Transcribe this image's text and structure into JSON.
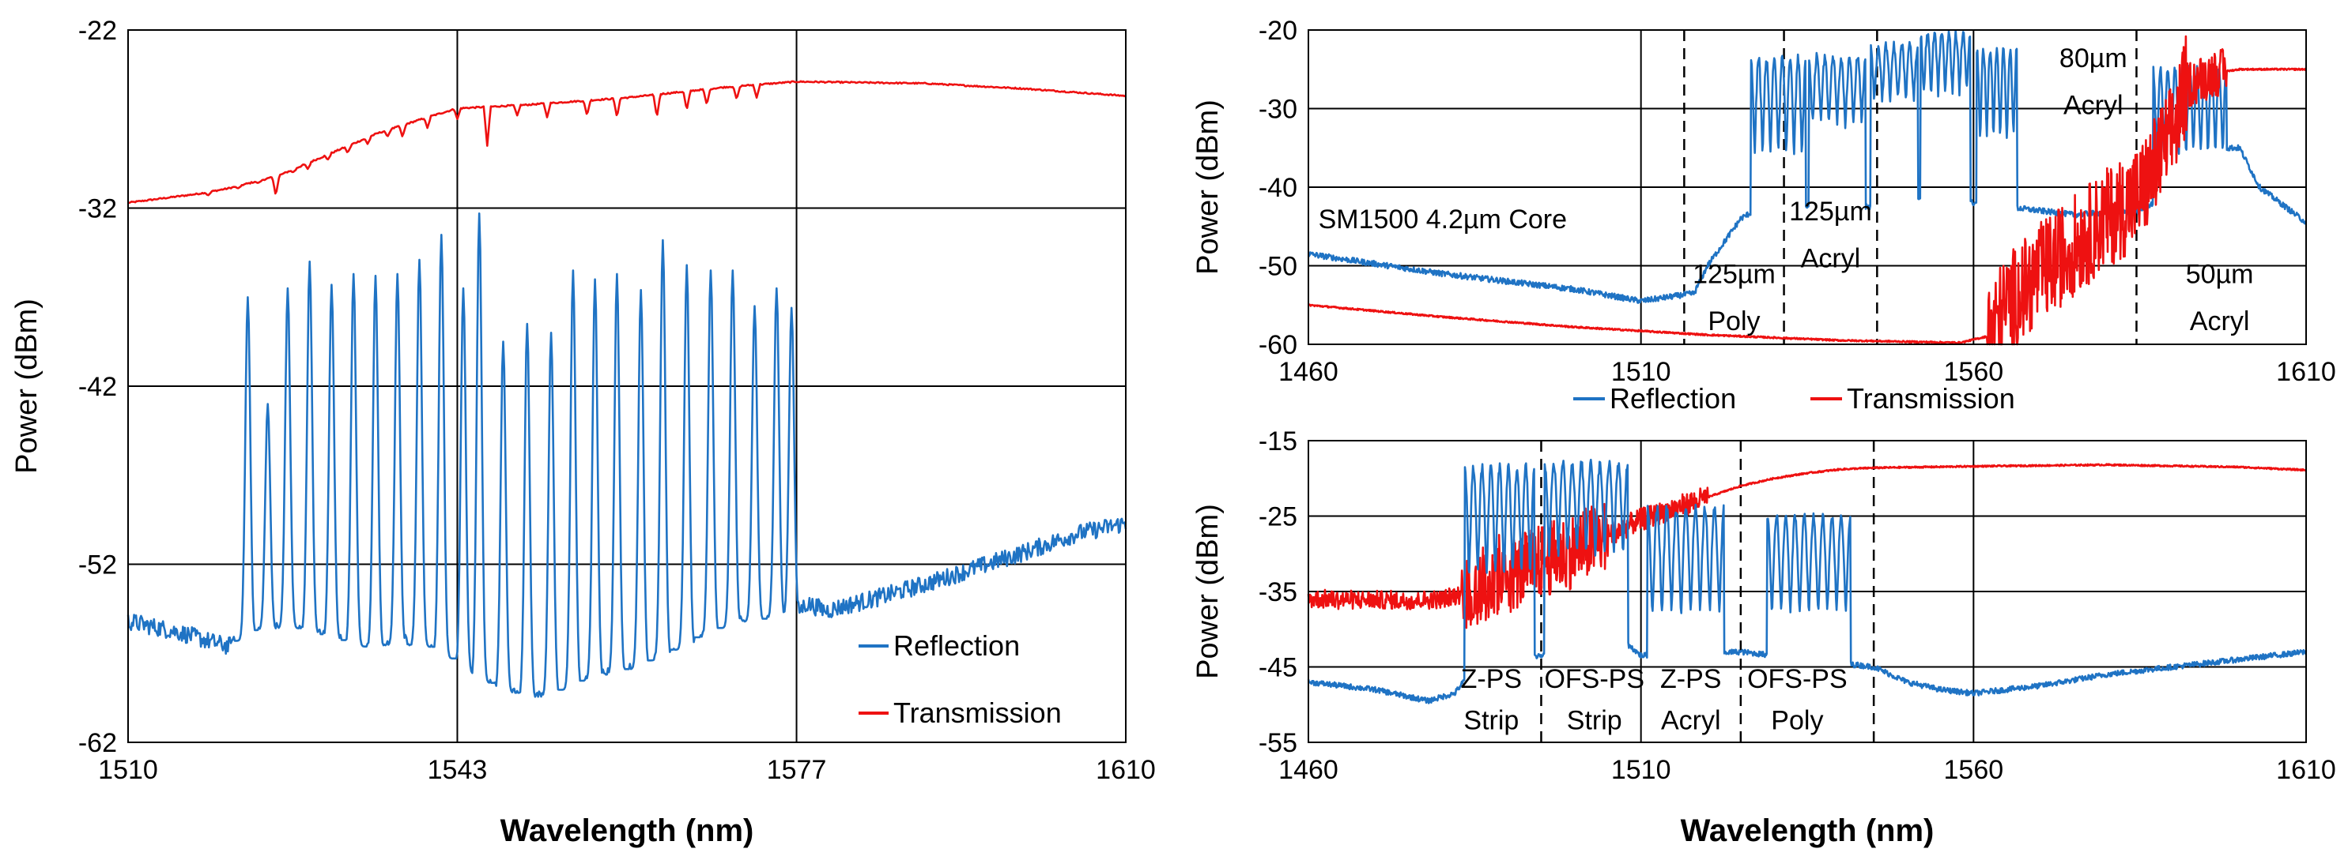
{
  "colors": {
    "reflection": "#1f73c4",
    "transmission": "#ee1111"
  },
  "chart_data": [
    {
      "id": "left",
      "type": "line",
      "xlabel": "Wavelength (nm)",
      "ylabel": "Power (dBm)",
      "xlim": [
        1510,
        1610
      ],
      "ylim": [
        -62,
        -22
      ],
      "xticks": [
        1510,
        1543,
        1577,
        1610
      ],
      "yticks": [
        -62,
        -52,
        -42,
        -32,
        -22
      ],
      "vlines": [
        1543,
        1577
      ],
      "legend": {
        "position": "bottom-right",
        "entries": [
          "Reflection",
          "Transmission"
        ]
      },
      "series": [
        {
          "name": "Transmission",
          "color": "transmission",
          "kind": "transmission",
          "points": [
            [
              1510,
              -31.7
            ],
            [
              1517,
              -31.2
            ],
            [
              1520,
              -30.9
            ],
            [
              1525,
              -30.2
            ],
            [
              1530,
              -29.0
            ],
            [
              1535,
              -27.8
            ],
            [
              1540,
              -26.9
            ],
            [
              1543,
              -26.4
            ],
            [
              1550,
              -26.2
            ],
            [
              1560,
              -25.8
            ],
            [
              1570,
              -25.2
            ],
            [
              1577,
              -24.9
            ],
            [
              1590,
              -25.0
            ],
            [
              1600,
              -25.3
            ],
            [
              1610,
              -25.7
            ]
          ],
          "dips": [
            [
              1518,
              -31.3
            ],
            [
              1521,
              -30.9
            ],
            [
              1523,
              -30.6
            ],
            [
              1524.8,
              -31.3
            ],
            [
              1526.5,
              -30.0
            ],
            [
              1528,
              -29.8
            ],
            [
              1530,
              -29.3
            ],
            [
              1532,
              -28.9
            ],
            [
              1534,
              -28.4
            ],
            [
              1536,
              -28.0
            ],
            [
              1537.5,
              -28.0
            ],
            [
              1540,
              -27.5
            ],
            [
              1543,
              -27.0
            ],
            [
              1546,
              -28.5
            ],
            [
              1549,
              -26.8
            ],
            [
              1552,
              -26.9
            ],
            [
              1556,
              -26.8
            ],
            [
              1559,
              -26.9
            ],
            [
              1563,
              -26.9
            ],
            [
              1566,
              -26.5
            ],
            [
              1568,
              -26.2
            ],
            [
              1571,
              -25.9
            ],
            [
              1573,
              -25.8
            ]
          ]
        },
        {
          "name": "Reflection",
          "color": "reflection",
          "kind": "peaks",
          "base": [
            [
              1510,
              -55.2
            ],
            [
              1515,
              -55.8
            ],
            [
              1518,
              -56.3
            ],
            [
              1520,
              -56.6
            ],
            [
              1522,
              -56.3
            ],
            [
              1524,
              -55.7
            ],
            [
              1526,
              -55.6
            ],
            [
              1528,
              -55.9
            ],
            [
              1530,
              -56.2
            ],
            [
              1532,
              -56.5
            ],
            [
              1534,
              -56.9
            ],
            [
              1536,
              -56.7
            ],
            [
              1538,
              -56.4
            ],
            [
              1540,
              -56.8
            ],
            [
              1542,
              -57.5
            ],
            [
              1544,
              -58.3
            ],
            [
              1546,
              -58.9
            ],
            [
              1548,
              -59.3
            ],
            [
              1550,
              -59.6
            ],
            [
              1552,
              -59.5
            ],
            [
              1554,
              -59.2
            ],
            [
              1556,
              -58.7
            ],
            [
              1558,
              -58.3
            ],
            [
              1560,
              -58.1
            ],
            [
              1562,
              -57.8
            ],
            [
              1564,
              -57.3
            ],
            [
              1566,
              -56.8
            ],
            [
              1568,
              -56.2
            ],
            [
              1570,
              -55.7
            ],
            [
              1572,
              -55.3
            ],
            [
              1574,
              -55.1
            ],
            [
              1576.5,
              -55.0
            ],
            [
              1578,
              -54.2
            ],
            [
              1580,
              -54.6
            ],
            [
              1585,
              -53.9
            ],
            [
              1590,
              -53.1
            ],
            [
              1595,
              -52.2
            ],
            [
              1600,
              -51.3
            ],
            [
              1605,
              -50.3
            ],
            [
              1610,
              -49.7
            ]
          ],
          "peaks": [
            [
              1522,
              -37.0
            ],
            [
              1524,
              -43.0
            ],
            [
              1526,
              -36.5
            ],
            [
              1528.2,
              -35.0
            ],
            [
              1530.4,
              -36.3
            ],
            [
              1532.6,
              -35.7
            ],
            [
              1534.8,
              -35.8
            ],
            [
              1537,
              -35.7
            ],
            [
              1539.2,
              -34.9
            ],
            [
              1541.4,
              -33.5
            ],
            [
              1543.6,
              -36.5
            ],
            [
              1545.2,
              -32.3
            ],
            [
              1547.6,
              -39.5
            ],
            [
              1550,
              -38.5
            ],
            [
              1552.4,
              -39.0
            ],
            [
              1554.6,
              -35.5
            ],
            [
              1556.8,
              -36.0
            ],
            [
              1559,
              -35.7
            ],
            [
              1561.4,
              -36.6
            ],
            [
              1563.6,
              -33.8
            ],
            [
              1566,
              -35.2
            ],
            [
              1568.4,
              -35.5
            ],
            [
              1570.6,
              -35.5
            ],
            [
              1572.8,
              -37.5
            ],
            [
              1575,
              -36.5
            ],
            [
              1576.5,
              -37.6
            ]
          ]
        }
      ]
    },
    {
      "id": "top-right",
      "type": "line",
      "xlabel": "",
      "ylabel": "Power (dBm)",
      "xlim": [
        1460,
        1610
      ],
      "ylim": [
        -60,
        -20
      ],
      "xticks": [
        1460,
        1510,
        1560,
        1610
      ],
      "yticks": [
        -60,
        -50,
        -40,
        -30,
        -20
      ],
      "vlines": [
        1510,
        1560
      ],
      "dashed_lines": [
        1516.5,
        1531.5,
        1545.5,
        1584.5
      ],
      "annotations": [
        {
          "text": "SM1500 4.2µm Core",
          "x": 1461.5,
          "y": -44,
          "anchor": "start"
        },
        {
          "text": "125µm",
          "x": 1524,
          "y": -51,
          "anchor": "middle"
        },
        {
          "text": "Poly",
          "x": 1524,
          "y": -57,
          "anchor": "middle"
        },
        {
          "text": "125µm",
          "x": 1538.5,
          "y": -43,
          "anchor": "middle"
        },
        {
          "text": "Acryl",
          "x": 1538.5,
          "y": -49,
          "anchor": "middle"
        },
        {
          "text": "80µm",
          "x": 1578,
          "y": -23.5,
          "anchor": "middle"
        },
        {
          "text": "Acryl",
          "x": 1578,
          "y": -29.5,
          "anchor": "middle"
        },
        {
          "text": "50µm",
          "x": 1597,
          "y": -51,
          "anchor": "middle"
        },
        {
          "text": "Acryl",
          "x": 1597,
          "y": -57,
          "anchor": "middle"
        }
      ],
      "legend": {
        "position": "bottom-center",
        "entries": [
          "Reflection",
          "Transmission"
        ]
      },
      "series": [
        {
          "name": "Reflection",
          "color": "reflection",
          "kind": "bands",
          "base": [
            [
              1460,
              -48.5
            ],
            [
              1480,
              -51.0
            ],
            [
              1500,
              -53.0
            ],
            [
              1510,
              -54.5
            ],
            [
              1518,
              -53.5
            ],
            [
              1520,
              -50.0
            ],
            [
              1525,
              -44.0
            ],
            [
              1527,
              -43.0
            ],
            [
              1545,
              -42.5
            ],
            [
              1550,
              -41.0
            ],
            [
              1560,
              -42.0
            ],
            [
              1575,
              -43.5
            ],
            [
              1585,
              -43.0
            ],
            [
              1589,
              -41.0
            ],
            [
              1592,
              -35.0
            ],
            [
              1600,
              -35.0
            ],
            [
              1603,
              -40.0
            ],
            [
              1610,
              -44.5
            ]
          ],
          "bands": [
            {
              "x0": 1526.5,
              "x1": 1534.8,
              "top": -23.5,
              "bottom": -36.0,
              "n": 7
            },
            {
              "x0": 1535.2,
              "x1": 1543.8,
              "top": -23.5,
              "bottom": -32.0,
              "n": 7
            },
            {
              "x0": 1544.5,
              "x1": 1551.6,
              "top": -22.0,
              "bottom": -29.0,
              "n": 6
            },
            {
              "x0": 1552.0,
              "x1": 1559.5,
              "top": -20.5,
              "bottom": -28.0,
              "n": 7
            },
            {
              "x0": 1560.5,
              "x1": 1566.5,
              "top": -22.5,
              "bottom": -34.0,
              "n": 6
            },
            {
              "x0": 1587.0,
              "x1": 1598.0,
              "top": -25.0,
              "bottom": -36.0,
              "n": 10
            }
          ]
        },
        {
          "name": "Transmission",
          "color": "transmission",
          "kind": "noisyline",
          "base": [
            [
              1460,
              -55.0
            ],
            [
              1480,
              -56.5
            ],
            [
              1500,
              -57.8
            ],
            [
              1520,
              -58.8
            ],
            [
              1540,
              -59.5
            ],
            [
              1558,
              -59.8
            ],
            [
              1562,
              -59.0
            ],
            [
              1565,
              -55.0
            ],
            [
              1570,
              -51.0
            ],
            [
              1575,
              -47.5
            ],
            [
              1580,
              -44.0
            ],
            [
              1585,
              -41.0
            ],
            [
              1590,
              -33.0
            ],
            [
              1592,
              -27.0
            ],
            [
              1596,
              -25.5
            ],
            [
              1600,
              -25.0
            ],
            [
              1610,
              -25.0
            ]
          ],
          "noise": [
            {
              "x0": 1562,
              "x1": 1592,
              "amp": 6.5,
              "n": 40
            },
            {
              "x0": 1592,
              "x1": 1598,
              "amp": 3.0,
              "n": 10
            }
          ]
        }
      ]
    },
    {
      "id": "bottom-right",
      "type": "line",
      "xlabel": "Wavelength (nm)",
      "ylabel": "Power (dBm)",
      "xlim": [
        1460,
        1610
      ],
      "ylim": [
        -55,
        -15
      ],
      "xticks": [
        1460,
        1510,
        1560,
        1610
      ],
      "yticks": [
        -55,
        -45,
        -35,
        -25,
        -15
      ],
      "vlines": [
        1510,
        1560
      ],
      "dashed_lines": [
        1495,
        1525,
        1545
      ],
      "annotations": [
        {
          "text": "Z-PS",
          "x": 1487.5,
          "y": -46.5,
          "anchor": "middle"
        },
        {
          "text": "Strip",
          "x": 1487.5,
          "y": -52.0,
          "anchor": "middle"
        },
        {
          "text": "OFS-PS",
          "x": 1503.0,
          "y": -46.5,
          "anchor": "middle"
        },
        {
          "text": "Strip",
          "x": 1503.0,
          "y": -52.0,
          "anchor": "middle"
        },
        {
          "text": "Z-PS",
          "x": 1517.5,
          "y": -46.5,
          "anchor": "middle"
        },
        {
          "text": "Acryl",
          "x": 1517.5,
          "y": -52.0,
          "anchor": "middle"
        },
        {
          "text": "OFS-PS",
          "x": 1533.5,
          "y": -46.5,
          "anchor": "middle"
        },
        {
          "text": "Poly",
          "x": 1533.5,
          "y": -52.0,
          "anchor": "middle"
        }
      ],
      "series": [
        {
          "name": "Transmission",
          "color": "transmission",
          "kind": "noisyline",
          "base": [
            [
              1460,
              -36.0
            ],
            [
              1475,
              -36.2
            ],
            [
              1480,
              -36.0
            ],
            [
              1485,
              -35.0
            ],
            [
              1490,
              -33.0
            ],
            [
              1495,
              -31.0
            ],
            [
              1500,
              -29.5
            ],
            [
              1505,
              -27.5
            ],
            [
              1510,
              -25.5
            ],
            [
              1515,
              -24.0
            ],
            [
              1520,
              -22.5
            ],
            [
              1525,
              -21.0
            ],
            [
              1530,
              -20.0
            ],
            [
              1535,
              -19.3
            ],
            [
              1540,
              -18.8
            ],
            [
              1545,
              -18.6
            ],
            [
              1560,
              -18.4
            ],
            [
              1580,
              -18.2
            ],
            [
              1600,
              -18.5
            ],
            [
              1610,
              -18.9
            ]
          ],
          "noise": [
            {
              "x0": 1460,
              "x1": 1490,
              "amp": 1.2,
              "n": 80
            },
            {
              "x0": 1483,
              "x1": 1505,
              "amp": 5.0,
              "n": 40
            },
            {
              "x0": 1505,
              "x1": 1520,
              "amp": 1.5,
              "n": 20
            }
          ]
        },
        {
          "name": "Reflection",
          "color": "reflection",
          "kind": "bands",
          "base": [
            [
              1460,
              -47.0
            ],
            [
              1470,
              -48.0
            ],
            [
              1478,
              -49.5
            ],
            [
              1482,
              -48.5
            ],
            [
              1485,
              -45.0
            ],
            [
              1495,
              -43.5
            ],
            [
              1508,
              -42.0
            ],
            [
              1510,
              -43.5
            ],
            [
              1525,
              -43.0
            ],
            [
              1545,
              -45.0
            ],
            [
              1550,
              -47.0
            ],
            [
              1555,
              -48.0
            ],
            [
              1560,
              -48.5
            ],
            [
              1570,
              -47.5
            ],
            [
              1580,
              -46.0
            ],
            [
              1590,
              -45.0
            ],
            [
              1600,
              -44.0
            ],
            [
              1610,
              -43.0
            ]
          ],
          "bands": [
            {
              "x0": 1483.5,
              "x1": 1494.0,
              "top": -18.5,
              "bottom": -33.0,
              "n": 8
            },
            {
              "x0": 1495.5,
              "x1": 1508.0,
              "top": -18.0,
              "bottom": -30.0,
              "n": 9
            },
            {
              "x0": 1511.0,
              "x1": 1522.5,
              "top": -24.0,
              "bottom": -38.0,
              "n": 8
            },
            {
              "x0": 1529.0,
              "x1": 1541.5,
              "top": -25.0,
              "bottom": -38.0,
              "n": 9
            }
          ]
        }
      ]
    }
  ]
}
